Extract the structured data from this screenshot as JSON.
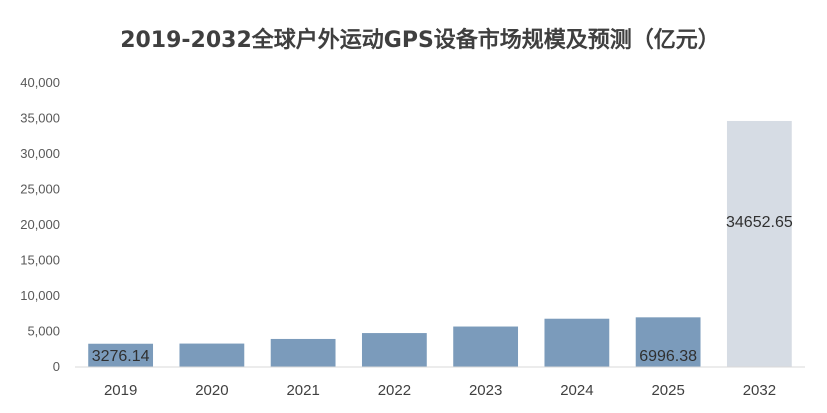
{
  "chart_data": {
    "type": "bar",
    "title": "2019-2032全球户外运动GPS设备市场规模及预测（亿元）",
    "xlabel": "",
    "ylabel": "",
    "categories": [
      "2019",
      "2020",
      "2021",
      "2022",
      "2023",
      "2024",
      "2025",
      "2032"
    ],
    "values": [
      3276.14,
      3300,
      3950,
      4780,
      5700,
      6800,
      6996.38,
      34652.65
    ],
    "data_labels": {
      "0": "3276.14",
      "6": "6996.38",
      "7": "34652.65"
    },
    "ylim": [
      0,
      40000
    ],
    "yticks": [
      "0",
      "5,000",
      "10,000",
      "15,000",
      "20,000",
      "25,000",
      "30,000",
      "35,000",
      "40,000"
    ],
    "grid": false,
    "legend": "none",
    "colors": {
      "actual": "#7b9bbb",
      "forecast": "#d6dce4",
      "forecast_index": 7
    }
  }
}
